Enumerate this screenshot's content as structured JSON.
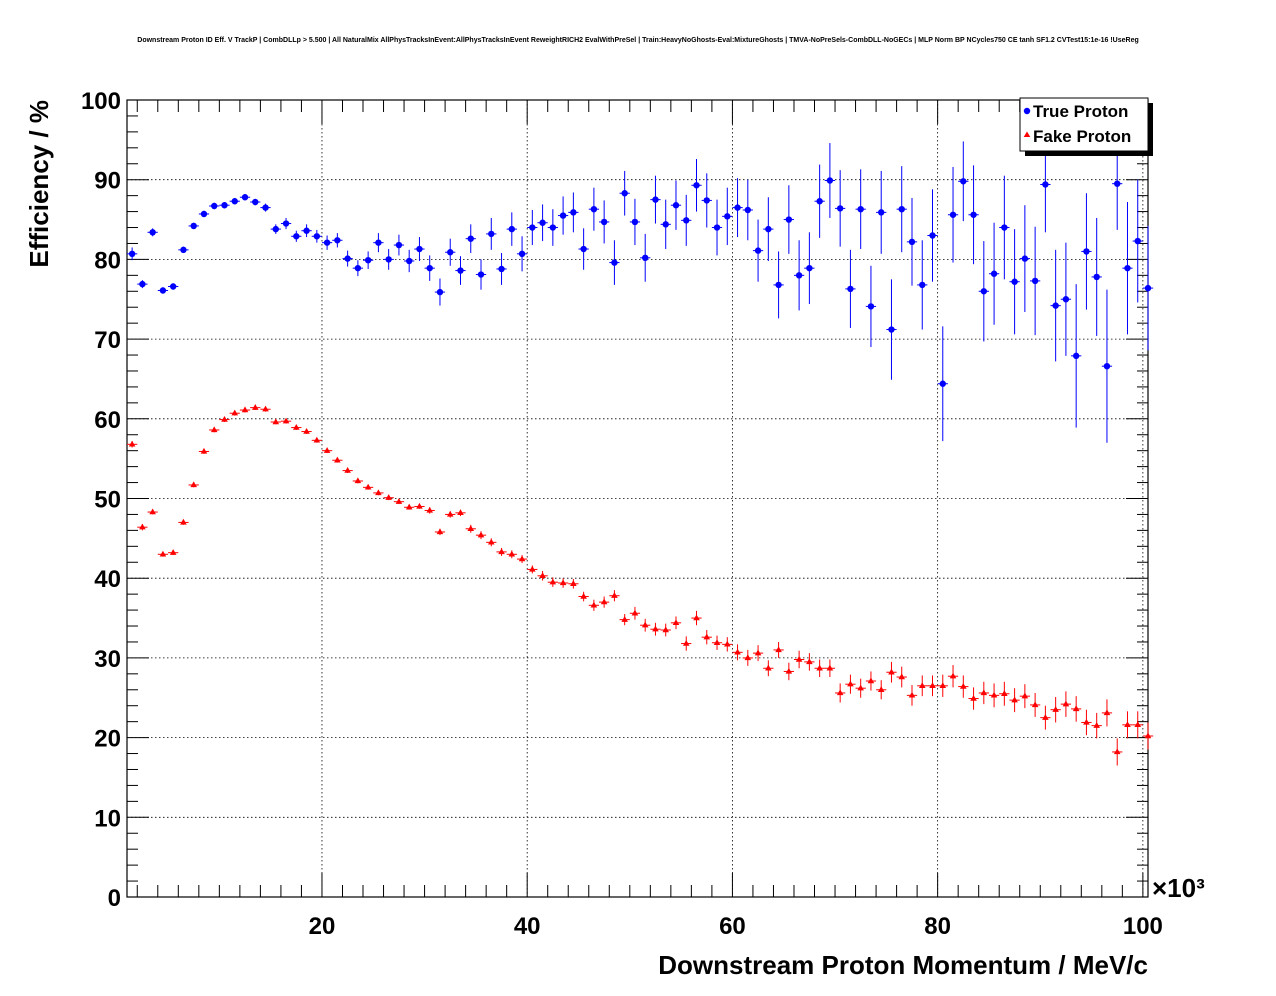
{
  "chart_data": {
    "type": "scatter",
    "title": "Downstream Proton ID Eff. V TrackP | CombDLLp > 5.500 | All NaturalMix AllPhysTracksInEvent:AllPhysTracksInEvent ReweightRICH2 EvalWithPreSel | Train:HeavyNoGhosts-Eval:MixtureGhosts | TMVA-NoPreSels-CombDLL-NoGECs | MLP Norm BP NCycles750 CE tanh SF1.2 CVTest15:1e-16 !UseReg",
    "xlabel": "Downstream Proton Momentum / MeV/c",
    "ylabel": "Efficiency / %",
    "x_exponent_label": "×10³",
    "x_unit_scale": 1000,
    "xlim": [
      1000,
      100500
    ],
    "ylim": [
      0,
      100
    ],
    "x_ticks": [
      20000,
      40000,
      60000,
      80000,
      100000
    ],
    "x_tick_labels": [
      "20",
      "40",
      "60",
      "80",
      "100"
    ],
    "y_ticks": [
      0,
      10,
      20,
      30,
      40,
      50,
      60,
      70,
      80,
      90,
      100
    ],
    "y_tick_labels": [
      "0",
      "10",
      "20",
      "30",
      "40",
      "50",
      "60",
      "70",
      "80",
      "90",
      "100"
    ],
    "grid": true,
    "legend_position": "top-right",
    "bin_half_width": 500,
    "x": [
      1500,
      2500,
      3500,
      4500,
      5500,
      6500,
      7500,
      8500,
      9500,
      10500,
      11500,
      12500,
      13500,
      14500,
      15500,
      16500,
      17500,
      18500,
      19500,
      20500,
      21500,
      22500,
      23500,
      24500,
      25500,
      26500,
      27500,
      28500,
      29500,
      30500,
      31500,
      32500,
      33500,
      34500,
      35500,
      36500,
      37500,
      38500,
      39500,
      40500,
      41500,
      42500,
      43500,
      44500,
      45500,
      46500,
      47500,
      48500,
      49500,
      50500,
      51500,
      52500,
      53500,
      54500,
      55500,
      56500,
      57500,
      58500,
      59500,
      60500,
      61500,
      62500,
      63500,
      64500,
      65500,
      66500,
      67500,
      68500,
      69500,
      70500,
      71500,
      72500,
      73500,
      74500,
      75500,
      76500,
      77500,
      78500,
      79500,
      80500,
      81500,
      82500,
      83500,
      84500,
      85500,
      86500,
      87500,
      88500,
      89500,
      90500,
      91500,
      92500,
      93500,
      94500,
      95500,
      96500,
      97500,
      98500,
      99500,
      100500
    ],
    "series": [
      {
        "name": "True Proton",
        "color": "#0000ff",
        "marker": "circle",
        "values": [
          80.7,
          76.9,
          83.4,
          76.1,
          76.6,
          81.2,
          84.2,
          85.7,
          86.7,
          86.8,
          87.3,
          87.8,
          87.2,
          86.5,
          83.8,
          84.5,
          82.9,
          83.6,
          82.9,
          82.1,
          82.4,
          80.1,
          78.9,
          79.9,
          82.1,
          80.0,
          81.8,
          79.8,
          81.3,
          78.9,
          75.9,
          80.9,
          78.6,
          82.6,
          78.1,
          83.2,
          78.8,
          83.8,
          80.7,
          84.0,
          84.6,
          84.0,
          85.5,
          85.9,
          81.3,
          86.3,
          84.7,
          79.6,
          88.3,
          84.7,
          80.2,
          87.5,
          84.4,
          86.8,
          84.9,
          89.3,
          87.4,
          84.0,
          85.4,
          86.5,
          86.2,
          81.1,
          83.8,
          76.8,
          85.0,
          78.0,
          78.9,
          87.3,
          89.9,
          86.4,
          76.3,
          86.3,
          74.1,
          85.9,
          71.2,
          86.3,
          82.2,
          76.8,
          83.0,
          64.4,
          85.6,
          89.8,
          85.6,
          76.0,
          78.2,
          84.0,
          77.2,
          80.1,
          77.3,
          89.4,
          74.2,
          75.0,
          67.9,
          81.0,
          77.8,
          66.6,
          89.5,
          78.9,
          82.3,
          76.4
        ],
        "errors": [
          0.8,
          0.5,
          0.5,
          0.4,
          0.4,
          0.4,
          0.4,
          0.4,
          0.4,
          0.4,
          0.4,
          0.4,
          0.4,
          0.5,
          0.6,
          0.7,
          0.7,
          0.8,
          0.8,
          0.9,
          0.9,
          1.0,
          1.0,
          1.1,
          1.2,
          1.3,
          1.3,
          1.4,
          1.5,
          1.6,
          1.7,
          1.7,
          1.8,
          1.8,
          1.9,
          2.0,
          2.0,
          2.1,
          2.2,
          2.2,
          2.3,
          2.3,
          2.4,
          2.5,
          2.6,
          2.7,
          2.7,
          2.8,
          2.8,
          2.9,
          3.0,
          3.0,
          3.1,
          3.1,
          3.2,
          3.3,
          3.4,
          3.5,
          3.6,
          3.7,
          3.8,
          3.9,
          4.0,
          4.2,
          4.3,
          4.4,
          4.5,
          4.6,
          4.7,
          4.8,
          4.9,
          5.0,
          5.1,
          5.2,
          6.3,
          5.4,
          5.5,
          5.6,
          5.8,
          7.2,
          6.0,
          5.0,
          6.2,
          6.3,
          6.4,
          6.5,
          6.6,
          6.7,
          6.8,
          6.0,
          7.0,
          7.1,
          9.0,
          7.3,
          7.4,
          9.6,
          5.8,
          8.3,
          7.7,
          7.8
        ]
      },
      {
        "name": "Fake Proton",
        "color": "#ff0000",
        "marker": "triangle",
        "values": [
          56.8,
          46.4,
          48.3,
          43.0,
          43.2,
          47.0,
          51.7,
          55.9,
          58.6,
          59.9,
          60.7,
          61.1,
          61.4,
          61.2,
          59.6,
          59.7,
          58.9,
          58.4,
          57.3,
          56.0,
          54.8,
          53.5,
          52.2,
          51.4,
          50.7,
          50.1,
          49.6,
          48.9,
          49.0,
          48.5,
          45.8,
          48.0,
          48.2,
          46.2,
          45.4,
          44.5,
          43.3,
          43.0,
          42.4,
          41.1,
          40.3,
          39.5,
          39.4,
          39.3,
          37.7,
          36.6,
          37.0,
          37.8,
          34.8,
          35.6,
          34.1,
          33.6,
          33.5,
          34.4,
          31.8,
          35.0,
          32.6,
          31.9,
          31.7,
          30.7,
          30.0,
          30.6,
          28.7,
          31.0,
          28.3,
          29.8,
          29.5,
          28.7,
          28.7,
          25.6,
          26.7,
          26.2,
          27.1,
          26.0,
          28.2,
          27.6,
          25.3,
          26.5,
          26.5,
          26.5,
          27.7,
          26.4,
          24.9,
          25.6,
          25.3,
          25.5,
          24.7,
          25.2,
          24.1,
          22.5,
          23.5,
          24.2,
          23.6,
          21.9,
          21.5,
          23.1,
          18.2,
          21.6,
          21.6,
          20.2
        ],
        "errors": [
          0.4,
          0.4,
          0.3,
          0.3,
          0.3,
          0.3,
          0.3,
          0.3,
          0.3,
          0.3,
          0.3,
          0.3,
          0.3,
          0.3,
          0.3,
          0.3,
          0.3,
          0.3,
          0.3,
          0.3,
          0.3,
          0.3,
          0.3,
          0.3,
          0.3,
          0.3,
          0.3,
          0.3,
          0.3,
          0.4,
          0.4,
          0.4,
          0.4,
          0.5,
          0.5,
          0.5,
          0.5,
          0.5,
          0.5,
          0.5,
          0.6,
          0.6,
          0.6,
          0.6,
          0.6,
          0.7,
          0.7,
          0.7,
          0.7,
          0.8,
          0.8,
          0.8,
          0.8,
          0.8,
          0.9,
          0.9,
          0.9,
          0.9,
          0.9,
          1.0,
          1.0,
          1.0,
          1.0,
          1.0,
          1.1,
          1.1,
          1.1,
          1.1,
          1.1,
          1.2,
          1.2,
          1.2,
          1.2,
          1.2,
          1.3,
          1.3,
          1.3,
          1.3,
          1.3,
          1.4,
          1.4,
          1.4,
          1.4,
          1.4,
          1.5,
          1.5,
          1.5,
          1.5,
          1.5,
          1.5,
          1.6,
          1.6,
          1.6,
          1.6,
          1.6,
          1.7,
          1.7,
          1.7,
          1.7,
          1.7
        ]
      }
    ]
  }
}
